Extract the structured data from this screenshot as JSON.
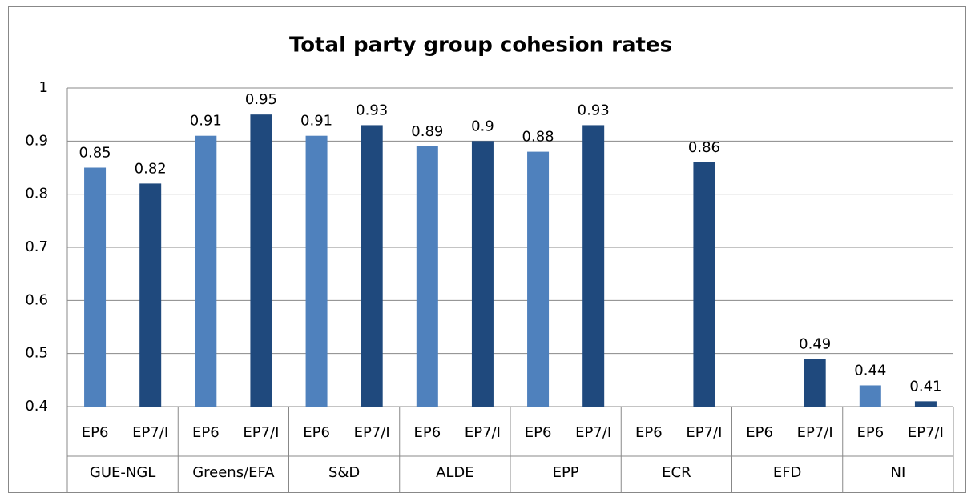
{
  "chart_data": {
    "type": "bar",
    "title": "Total party group cohesion rates",
    "categories": [
      "GUE-NGL",
      "Greens/EFA",
      "S&D",
      "ALDE",
      "EPP",
      "ECR",
      "EFD",
      "NI"
    ],
    "series": [
      {
        "name": "EP6",
        "color": "#4f81bd",
        "values": [
          0.85,
          0.91,
          0.91,
          0.89,
          0.88,
          null,
          null,
          0.44
        ]
      },
      {
        "name": "EP7/I",
        "color": "#1f497d",
        "values": [
          0.82,
          0.95,
          0.93,
          0.9,
          0.93,
          0.86,
          0.49,
          0.41
        ]
      }
    ],
    "ylim": [
      0.4,
      1
    ],
    "yticks": [
      0.4,
      0.5,
      0.6,
      0.7,
      0.8,
      0.9,
      1
    ],
    "grid": true
  }
}
